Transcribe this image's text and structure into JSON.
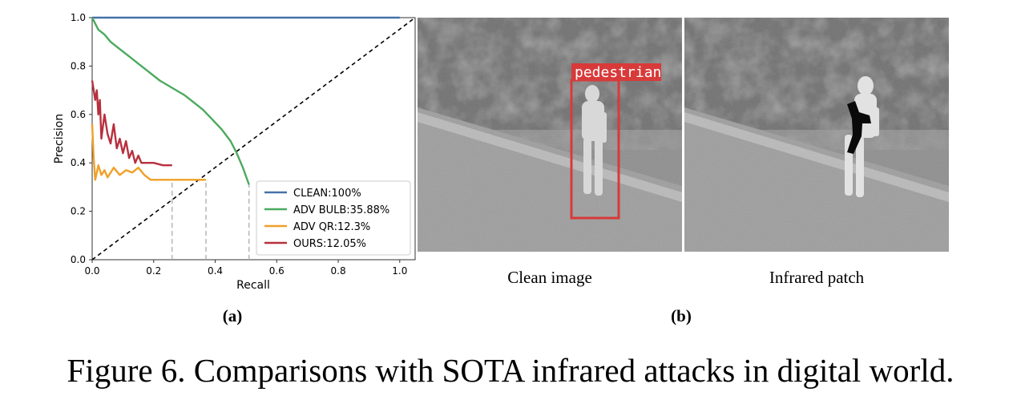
{
  "chart_data": {
    "type": "line",
    "xlabel": "Recall",
    "ylabel": "Precision",
    "xlim": [
      0,
      1.05
    ],
    "ylim": [
      0,
      1.0
    ],
    "x_ticks": [
      "0.0",
      "0.2",
      "0.4",
      "0.6",
      "0.8",
      "1.0"
    ],
    "y_ticks": [
      "0.0",
      "0.2",
      "0.4",
      "0.6",
      "0.8",
      "1.0"
    ],
    "legend_position": "bottom-right",
    "series": [
      {
        "name": "CLEAN:100%",
        "color": "#4472a8",
        "points": [
          [
            0,
            1.0
          ],
          [
            1.0,
            1.0
          ]
        ]
      },
      {
        "name": "ADV BULB:35.88%",
        "color": "#4aaa5e",
        "points": [
          [
            0.0,
            1.0
          ],
          [
            0.02,
            0.95
          ],
          [
            0.04,
            0.93
          ],
          [
            0.06,
            0.9
          ],
          [
            0.09,
            0.87
          ],
          [
            0.12,
            0.84
          ],
          [
            0.15,
            0.81
          ],
          [
            0.18,
            0.78
          ],
          [
            0.22,
            0.74
          ],
          [
            0.26,
            0.71
          ],
          [
            0.3,
            0.68
          ],
          [
            0.33,
            0.65
          ],
          [
            0.36,
            0.62
          ],
          [
            0.39,
            0.58
          ],
          [
            0.42,
            0.54
          ],
          [
            0.45,
            0.49
          ],
          [
            0.47,
            0.44
          ],
          [
            0.49,
            0.38
          ],
          [
            0.51,
            0.31
          ]
        ]
      },
      {
        "name": "ADV QR:12.3%",
        "color": "#f0a028",
        "points": [
          [
            0.0,
            0.56
          ],
          [
            0.005,
            0.42
          ],
          [
            0.01,
            0.33
          ],
          [
            0.015,
            0.36
          ],
          [
            0.02,
            0.39
          ],
          [
            0.03,
            0.35
          ],
          [
            0.04,
            0.37
          ],
          [
            0.05,
            0.34
          ],
          [
            0.06,
            0.36
          ],
          [
            0.07,
            0.38
          ],
          [
            0.09,
            0.35
          ],
          [
            0.11,
            0.37
          ],
          [
            0.13,
            0.36
          ],
          [
            0.15,
            0.38
          ],
          [
            0.17,
            0.35
          ],
          [
            0.19,
            0.33
          ],
          [
            0.22,
            0.33
          ],
          [
            0.25,
            0.33
          ],
          [
            0.3,
            0.33
          ],
          [
            0.37,
            0.33
          ]
        ]
      },
      {
        "name": "OURS:12.05%",
        "color": "#b8303e",
        "points": [
          [
            0.0,
            0.74
          ],
          [
            0.005,
            0.7
          ],
          [
            0.01,
            0.66
          ],
          [
            0.015,
            0.7
          ],
          [
            0.02,
            0.6
          ],
          [
            0.025,
            0.66
          ],
          [
            0.03,
            0.5
          ],
          [
            0.035,
            0.55
          ],
          [
            0.04,
            0.6
          ],
          [
            0.05,
            0.52
          ],
          [
            0.06,
            0.48
          ],
          [
            0.07,
            0.56
          ],
          [
            0.08,
            0.46
          ],
          [
            0.09,
            0.5
          ],
          [
            0.1,
            0.44
          ],
          [
            0.11,
            0.49
          ],
          [
            0.12,
            0.42
          ],
          [
            0.13,
            0.45
          ],
          [
            0.14,
            0.4
          ],
          [
            0.15,
            0.43
          ],
          [
            0.16,
            0.4
          ],
          [
            0.18,
            0.4
          ],
          [
            0.2,
            0.4
          ],
          [
            0.23,
            0.39
          ],
          [
            0.26,
            0.39
          ]
        ]
      }
    ],
    "dashed_diagonal": [
      [
        0,
        0
      ],
      [
        1.05,
        1.05
      ]
    ],
    "drop_lines_x": [
      0.26,
      0.37,
      0.51
    ]
  },
  "images": {
    "left_tag": "pedestrian",
    "left_caption": "Clean image",
    "right_caption": "Infrared patch"
  },
  "labels": {
    "a": "(a)",
    "b": "(b)"
  },
  "caption": "Figure 6. Comparisons with SOTA infrared attacks in digital world."
}
